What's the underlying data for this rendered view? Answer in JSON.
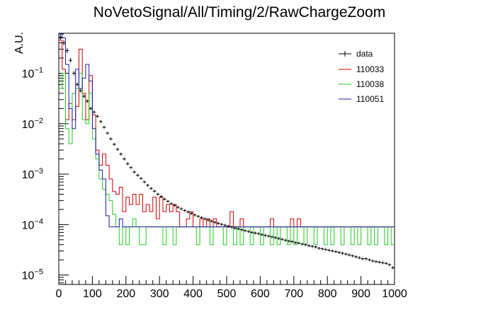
{
  "chart_data": {
    "type": "line",
    "title": "NoVetoSignal/All/Timing/2/RawChargeZoom",
    "ylabel": "A.U.",
    "xlabel": "",
    "xlim": [
      0,
      1000
    ],
    "ylim": [
      6.5e-06,
      0.62
    ],
    "y_scale": "log",
    "x_ticks": [
      "0",
      "100",
      "200",
      "300",
      "400",
      "500",
      "600",
      "700",
      "800",
      "900",
      "1000"
    ],
    "y_ticks": [
      {
        "base": "10",
        "exp": "−5",
        "value": 1e-05
      },
      {
        "base": "10",
        "exp": "−4",
        "value": 0.0001
      },
      {
        "base": "10",
        "exp": "−3",
        "value": 0.001
      },
      {
        "base": "10",
        "exp": "−2",
        "value": 0.01
      },
      {
        "base": "10",
        "exp": "−1",
        "value": 0.1
      }
    ],
    "grid": false,
    "legend_position": "top-right",
    "bin_width": 10,
    "data": {
      "name": "data",
      "color": "#000000",
      "x": [
        5,
        15,
        25,
        35,
        45,
        55,
        65,
        75,
        85,
        95,
        105,
        115,
        125,
        135,
        145,
        155,
        165,
        175,
        185,
        195,
        205,
        215,
        225,
        235,
        245,
        255,
        265,
        275,
        285,
        295,
        305,
        315,
        325,
        335,
        345,
        355,
        365,
        375,
        385,
        395,
        405,
        415,
        425,
        435,
        445,
        455,
        465,
        475,
        485,
        495,
        505,
        515,
        525,
        535,
        545,
        555,
        565,
        575,
        585,
        595,
        605,
        615,
        625,
        635,
        645,
        655,
        665,
        675,
        685,
        695,
        705,
        715,
        725,
        735,
        745,
        755,
        765,
        775,
        785,
        795,
        805,
        815,
        825,
        835,
        845,
        855,
        865,
        875,
        885,
        895,
        905,
        915,
        925,
        935,
        945,
        955,
        965,
        975,
        985,
        995
      ],
      "y": [
        0.52,
        0.4,
        0.28,
        0.18,
        0.1,
        0.06,
        0.045,
        0.035,
        0.028,
        0.02,
        0.017,
        0.014,
        0.011,
        0.0085,
        0.0065,
        0.005,
        0.0039,
        0.0031,
        0.0025,
        0.002,
        0.0016,
        0.00135,
        0.0011,
        0.00095,
        0.00082,
        0.0007,
        0.0006,
        0.00052,
        0.00046,
        0.0004,
        0.00036,
        0.00032,
        0.00029,
        0.00026,
        0.00024,
        0.00022,
        0.000205,
        0.00019,
        0.000178,
        0.000166,
        0.000155,
        0.000146,
        0.000138,
        0.00013,
        0.000123,
        0.000117,
        0.000111,
        0.000106,
        0.000101,
        9.7e-05,
        9.3e-05,
        8.9e-05,
        8.5e-05,
        8.2e-05,
        7.9e-05,
        7.6e-05,
        7.3e-05,
        7e-05,
        6.8e-05,
        6.6e-05,
        6.3e-05,
        6.1e-05,
        5.9e-05,
        5.7e-05,
        5.5e-05,
        5.3e-05,
        5.1e-05,
        4.9e-05,
        4.7e-05,
        4.6e-05,
        4.4e-05,
        4.3e-05,
        4.1e-05,
        4e-05,
        3.8e-05,
        3.7e-05,
        3.6e-05,
        3.4e-05,
        3.3e-05,
        3.2e-05,
        3.1e-05,
        3e-05,
        2.9e-05,
        2.8e-05,
        2.7e-05,
        2.6e-05,
        2.5e-05,
        2.4e-05,
        2.3e-05,
        2.2e-05,
        2.1e-05,
        2.1e-05,
        2e-05,
        1.9e-05,
        1.85e-05,
        1.8e-05,
        1.75e-05,
        1.7e-05,
        1.6e-05,
        1.4e-05
      ]
    },
    "series": [
      {
        "name": "110033",
        "color": "#cc0000",
        "values": [
          0.45,
          0.12,
          0.012,
          0.025,
          0.012,
          0.022,
          0.3,
          0.04,
          0.012,
          0.09,
          0.015,
          0.003,
          0.0015,
          0.0025,
          0.0015,
          0.0008,
          0.00045,
          0.0004,
          0.00055,
          0.00018,
          0.00035,
          0.00025,
          0.0004,
          0.00025,
          0.0004,
          0.00018,
          0.00025,
          0.00018,
          0.00035,
          0.00013,
          0.00035,
          0.00018,
          0.00025,
          0.00018,
          0.00025,
          0.00018,
          9e-05,
          9e-05,
          0.00013,
          0.00018,
          9e-05,
          9e-05,
          0.00013,
          9e-05,
          0.00013,
          9e-05,
          0.00013,
          9e-05,
          9e-05,
          9e-05,
          9e-05,
          0.00018,
          9e-05,
          9e-05,
          0.00013,
          9e-05,
          9e-05,
          9e-05,
          9e-05,
          9e-05,
          9e-05,
          9e-05,
          9e-05,
          0.00013,
          9e-05,
          9e-05,
          9e-05,
          9e-05,
          9e-05,
          0.00013,
          9e-05,
          0.00013,
          9e-05,
          9e-05,
          9e-05,
          9e-05,
          9e-05,
          9e-05,
          9e-05,
          9e-05,
          9e-05,
          9e-05,
          9e-05,
          9e-05,
          9e-05,
          9e-05,
          9e-05,
          9e-05,
          9e-05,
          9e-05,
          9e-05,
          9e-05,
          9e-05,
          9e-05,
          9e-05,
          9e-05,
          9e-05,
          9e-05,
          9e-05,
          9e-05
        ]
      },
      {
        "name": "110038",
        "color": "#22cc22",
        "values": [
          0.05,
          0.1,
          0.008,
          0.004,
          0.04,
          0.05,
          0.1,
          0.012,
          0.01,
          0.04,
          0.005,
          0.002,
          0.0008,
          0.0005,
          0.0004,
          0.0003,
          0.00016,
          9e-05,
          4e-05,
          9e-05,
          4e-05,
          9e-05,
          0.00013,
          9e-05,
          4e-05,
          4e-05,
          9e-05,
          9e-05,
          9e-05,
          9e-05,
          9e-05,
          4e-05,
          9e-05,
          9e-05,
          4e-05,
          9e-05,
          9e-05,
          9e-05,
          9e-05,
          9e-05,
          9e-05,
          4e-05,
          9e-05,
          9e-05,
          9e-05,
          4e-05,
          9e-05,
          9e-05,
          9e-05,
          4e-05,
          9e-05,
          9e-05,
          4e-05,
          9e-05,
          4e-05,
          9e-05,
          9e-05,
          4e-05,
          9e-05,
          9e-05,
          4e-05,
          9e-05,
          9e-05,
          4e-05,
          9e-05,
          4e-05,
          9e-05,
          9e-05,
          4e-05,
          9e-05,
          4e-05,
          9e-05,
          9e-05,
          4e-05,
          9e-05,
          9e-05,
          4e-05,
          9e-05,
          9e-05,
          4e-05,
          9e-05,
          4e-05,
          9e-05,
          9e-05,
          4e-05,
          9e-05,
          9e-05,
          4e-05,
          9e-05,
          4e-05,
          9e-05,
          9e-05,
          4e-05,
          9e-05,
          4e-05,
          9e-05,
          9e-05,
          4e-05,
          9e-05,
          4e-05
        ]
      },
      {
        "name": "110051",
        "color": "#1a1aaa",
        "values": [
          0.6,
          0.5,
          0.15,
          0.02,
          0.008,
          0.12,
          0.05,
          0.08,
          0.15,
          0.07,
          0.008,
          0.0025,
          0.0012,
          0.0008,
          0.00015,
          9e-05,
          9e-05,
          9e-05,
          0.00013,
          9e-05,
          9e-05,
          9e-05,
          9e-05,
          9e-05,
          9e-05,
          9e-05,
          9e-05,
          9e-05,
          9e-05,
          9e-05,
          9e-05,
          9e-05,
          9e-05,
          9e-05,
          9e-05,
          9e-05,
          9e-05,
          9e-05,
          9e-05,
          9e-05,
          9e-05,
          9e-05,
          9e-05,
          9e-05,
          9e-05,
          9e-05,
          9e-05,
          9e-05,
          9e-05,
          9e-05,
          9e-05,
          9e-05,
          9e-05,
          9e-05,
          9e-05,
          9e-05,
          9e-05,
          9e-05,
          9e-05,
          9e-05,
          9e-05,
          9e-05,
          9e-05,
          9e-05,
          9e-05,
          9e-05,
          9e-05,
          9e-05,
          9e-05,
          9e-05,
          9e-05,
          9e-05,
          9e-05,
          9e-05,
          9e-05,
          9e-05,
          9e-05,
          9e-05,
          9e-05,
          9e-05,
          9e-05,
          9e-05,
          9e-05,
          9e-05,
          9e-05,
          9e-05,
          9e-05,
          9e-05,
          9e-05,
          9e-05,
          9e-05,
          9e-05,
          9e-05,
          9e-05,
          9e-05,
          9e-05,
          9e-05,
          9e-05,
          9e-05,
          9e-05
        ]
      }
    ]
  }
}
